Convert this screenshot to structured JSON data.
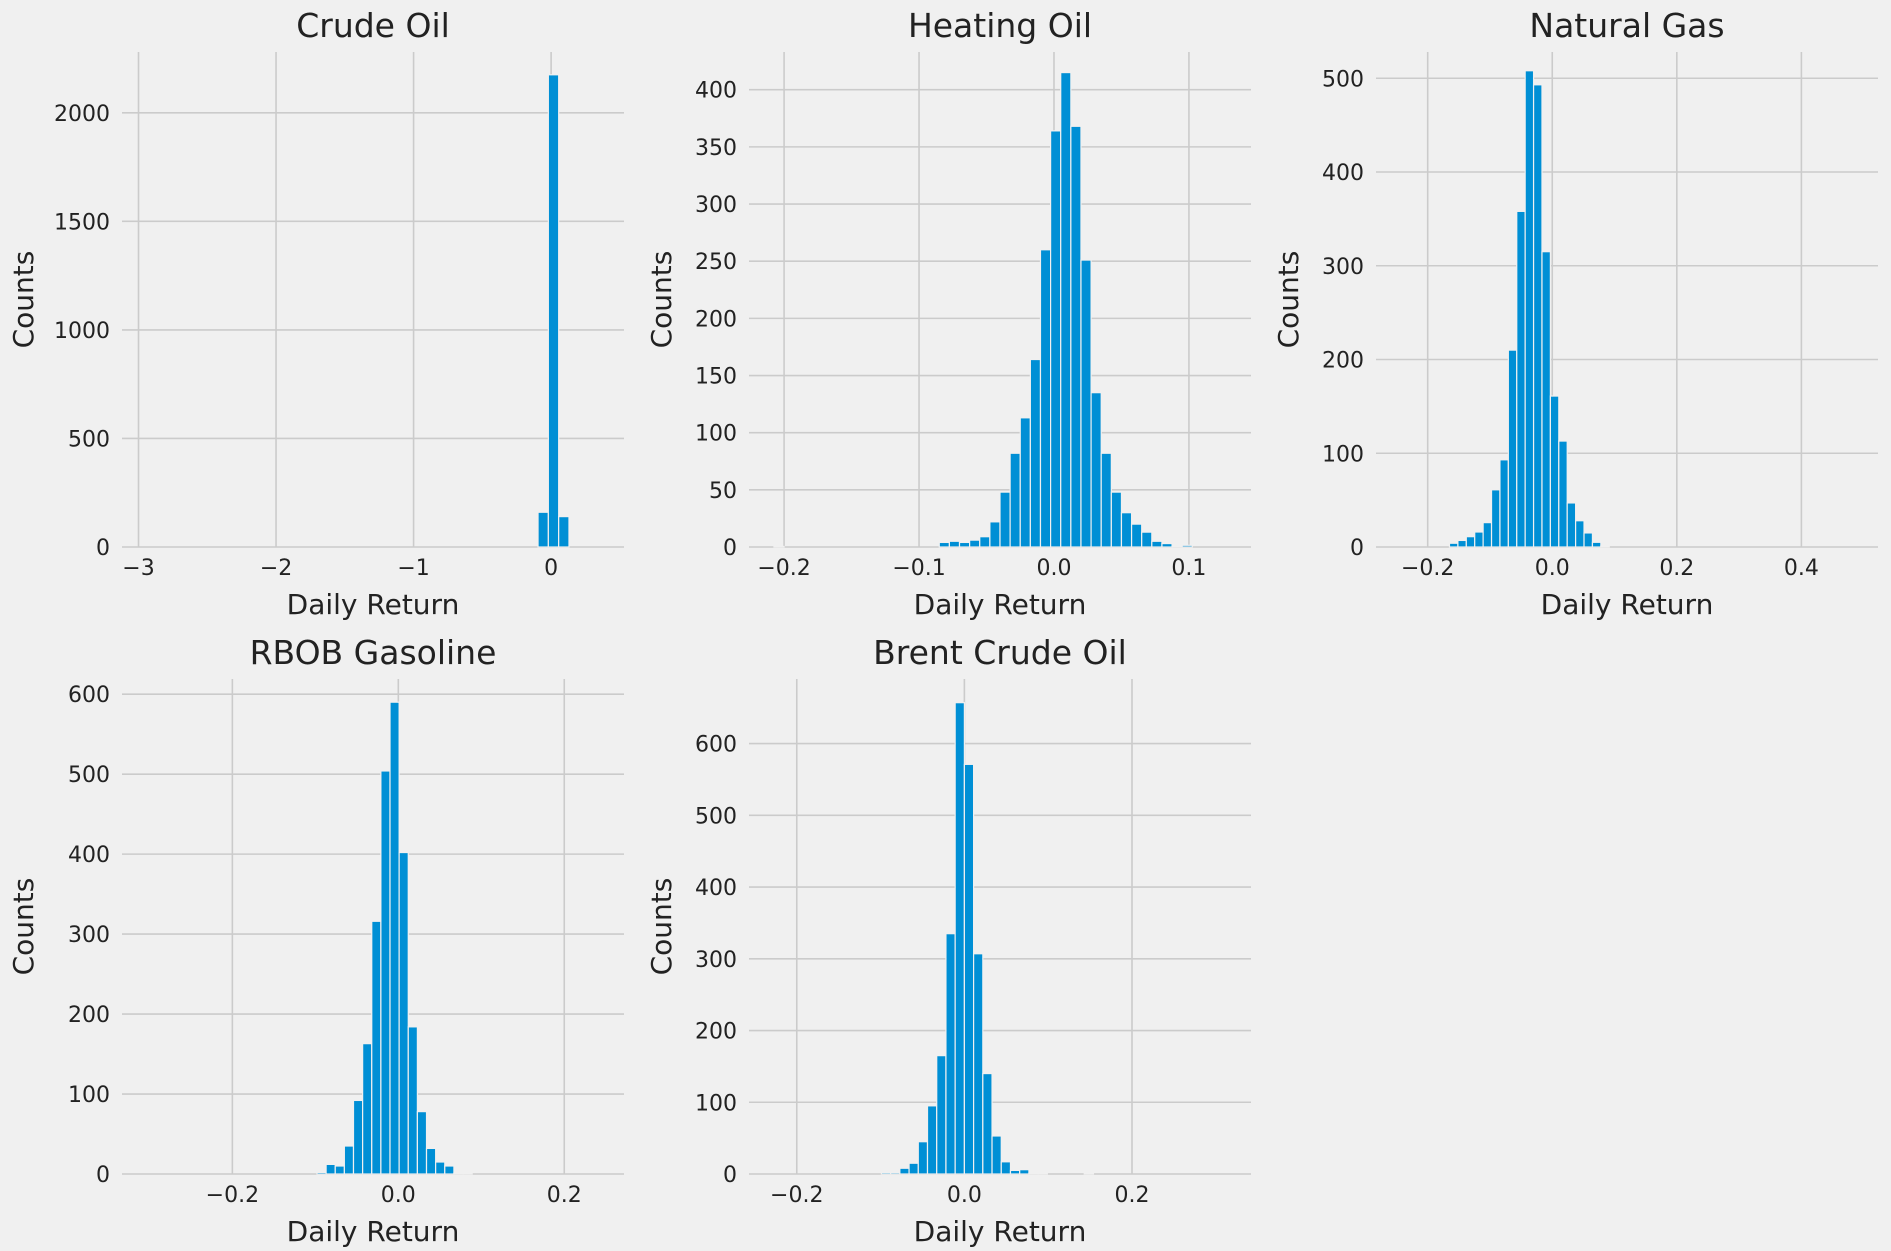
{
  "style": {
    "background": "#f0f0f0",
    "bar_color": "#008fd5",
    "grid_color": "#cbcbcb"
  },
  "chart_data": [
    {
      "type": "bar",
      "title": "Crude Oil",
      "xlabel": "Daily Return",
      "ylabel": "Counts",
      "xlim": [
        -3.12,
        0.53
      ],
      "ylim": [
        0,
        2280
      ],
      "xticks": [
        -3,
        -2,
        -1,
        0
      ],
      "xtick_labels": [
        "−3",
        "−2",
        "−1",
        "0"
      ],
      "yticks": [
        0,
        500,
        1000,
        1500,
        2000
      ],
      "ytick_labels": [
        "0",
        "500",
        "1000",
        "1500",
        "2000"
      ],
      "bins": [
        {
          "x0": -0.095,
          "x1": -0.02,
          "count": 160
        },
        {
          "x0": -0.02,
          "x1": 0.055,
          "count": 2175
        },
        {
          "x0": 0.055,
          "x1": 0.13,
          "count": 140
        }
      ]
    },
    {
      "type": "bar",
      "title": "Heating Oil",
      "xlabel": "Daily Return",
      "ylabel": "Counts",
      "xlim": [
        -0.226,
        0.146
      ],
      "ylim": [
        0,
        433
      ],
      "xticks": [
        -0.2,
        -0.1,
        0.0,
        0.1
      ],
      "xtick_labels": [
        "−0.2",
        "−0.1",
        "0.0",
        "0.1"
      ],
      "yticks": [
        0,
        50,
        100,
        150,
        200,
        250,
        300,
        350,
        400
      ],
      "ytick_labels": [
        "0",
        "50",
        "100",
        "150",
        "200",
        "250",
        "300",
        "350",
        "400"
      ],
      "bins": [
        {
          "x0": -0.2075,
          "x1": -0.2,
          "count": 0.5
        },
        {
          "x0": -0.085,
          "x1": -0.0775,
          "count": 4
        },
        {
          "x0": -0.0775,
          "x1": -0.07,
          "count": 5
        },
        {
          "x0": -0.07,
          "x1": -0.0625,
          "count": 4
        },
        {
          "x0": -0.0625,
          "x1": -0.055,
          "count": 6
        },
        {
          "x0": -0.055,
          "x1": -0.0475,
          "count": 9
        },
        {
          "x0": -0.0475,
          "x1": -0.04,
          "count": 22
        },
        {
          "x0": -0.04,
          "x1": -0.0325,
          "count": 48
        },
        {
          "x0": -0.0325,
          "x1": -0.025,
          "count": 82
        },
        {
          "x0": -0.025,
          "x1": -0.0175,
          "count": 113
        },
        {
          "x0": -0.0175,
          "x1": -0.01,
          "count": 164
        },
        {
          "x0": -0.01,
          "x1": -0.0025,
          "count": 260
        },
        {
          "x0": -0.0025,
          "x1": 0.005,
          "count": 364
        },
        {
          "x0": 0.005,
          "x1": 0.0125,
          "count": 415
        },
        {
          "x0": 0.0125,
          "x1": 0.02,
          "count": 368
        },
        {
          "x0": 0.02,
          "x1": 0.0275,
          "count": 251
        },
        {
          "x0": 0.0275,
          "x1": 0.035,
          "count": 135
        },
        {
          "x0": 0.035,
          "x1": 0.0425,
          "count": 82
        },
        {
          "x0": 0.0425,
          "x1": 0.05,
          "count": 48
        },
        {
          "x0": 0.05,
          "x1": 0.0575,
          "count": 30
        },
        {
          "x0": 0.0575,
          "x1": 0.065,
          "count": 20
        },
        {
          "x0": 0.065,
          "x1": 0.0725,
          "count": 13
        },
        {
          "x0": 0.0725,
          "x1": 0.08,
          "count": 5
        },
        {
          "x0": 0.08,
          "x1": 0.0875,
          "count": 3
        },
        {
          "x0": 0.0875,
          "x1": 0.095,
          "count": 0.5
        },
        {
          "x0": 0.095,
          "x1": 0.1025,
          "count": 1.5
        }
      ]
    },
    {
      "type": "bar",
      "title": "Natural Gas",
      "xlabel": "Daily Return",
      "ylabel": "Counts",
      "xlim": [
        -0.283,
        0.523
      ],
      "ylim": [
        0,
        528
      ],
      "xticks": [
        -0.2,
        0.0,
        0.2,
        0.4
      ],
      "xtick_labels": [
        "−0.2",
        "0.0",
        "0.2",
        "0.4"
      ],
      "yticks": [
        0,
        100,
        200,
        300,
        400,
        500
      ],
      "ytick_labels": [
        "0",
        "100",
        "200",
        "300",
        "400",
        "500"
      ],
      "bins": [
        {
          "x0": -0.165,
          "x1": -0.1515,
          "count": 4
        },
        {
          "x0": -0.1515,
          "x1": -0.138,
          "count": 7
        },
        {
          "x0": -0.138,
          "x1": -0.1245,
          "count": 11
        },
        {
          "x0": -0.1245,
          "x1": -0.111,
          "count": 16
        },
        {
          "x0": -0.111,
          "x1": -0.0975,
          "count": 26
        },
        {
          "x0": -0.0975,
          "x1": -0.084,
          "count": 61
        },
        {
          "x0": -0.084,
          "x1": -0.0705,
          "count": 93
        },
        {
          "x0": -0.0705,
          "x1": -0.057,
          "count": 210
        },
        {
          "x0": -0.057,
          "x1": -0.0435,
          "count": 358
        },
        {
          "x0": -0.0435,
          "x1": -0.03,
          "count": 508
        },
        {
          "x0": -0.03,
          "x1": -0.0165,
          "count": 493
        },
        {
          "x0": -0.0165,
          "x1": -0.003,
          "count": 315
        },
        {
          "x0": -0.003,
          "x1": 0.0105,
          "count": 161
        },
        {
          "x0": 0.0105,
          "x1": 0.024,
          "count": 113
        },
        {
          "x0": 0.024,
          "x1": 0.0375,
          "count": 47
        },
        {
          "x0": 0.0375,
          "x1": 0.051,
          "count": 28
        },
        {
          "x0": 0.051,
          "x1": 0.0645,
          "count": 15
        },
        {
          "x0": 0.0645,
          "x1": 0.078,
          "count": 5
        },
        {
          "x0": 0.078,
          "x1": 0.0915,
          "count": 1
        }
      ]
    },
    {
      "type": "bar",
      "title": "RBOB Gasoline",
      "xlabel": "Daily Return",
      "ylabel": "Counts",
      "xlim": [
        -0.333,
        0.272
      ],
      "ylim": [
        0,
        619
      ],
      "xticks": [
        -0.2,
        0.0,
        0.2
      ],
      "xtick_labels": [
        "−0.2",
        "0.0",
        "0.2"
      ],
      "yticks": [
        0,
        100,
        200,
        300,
        400,
        500,
        600
      ],
      "ytick_labels": [
        "0",
        "100",
        "200",
        "300",
        "400",
        "500",
        "600"
      ],
      "bins": [
        {
          "x0": -0.098,
          "x1": -0.087,
          "count": 2
        },
        {
          "x0": -0.087,
          "x1": -0.076,
          "count": 12
        },
        {
          "x0": -0.076,
          "x1": -0.065,
          "count": 10
        },
        {
          "x0": -0.065,
          "x1": -0.054,
          "count": 35
        },
        {
          "x0": -0.054,
          "x1": -0.043,
          "count": 92
        },
        {
          "x0": -0.043,
          "x1": -0.032,
          "count": 163
        },
        {
          "x0": -0.032,
          "x1": -0.021,
          "count": 316
        },
        {
          "x0": -0.021,
          "x1": -0.01,
          "count": 504
        },
        {
          "x0": -0.01,
          "x1": 0.001,
          "count": 590
        },
        {
          "x0": 0.001,
          "x1": 0.012,
          "count": 402
        },
        {
          "x0": 0.012,
          "x1": 0.023,
          "count": 184
        },
        {
          "x0": 0.023,
          "x1": 0.034,
          "count": 78
        },
        {
          "x0": 0.034,
          "x1": 0.045,
          "count": 32
        },
        {
          "x0": 0.045,
          "x1": 0.056,
          "count": 15
        },
        {
          "x0": 0.056,
          "x1": 0.067,
          "count": 10
        },
        {
          "x0": 0.067,
          "x1": 0.078,
          "count": 1
        },
        {
          "x0": 0.078,
          "x1": 0.089,
          "count": 1
        }
      ]
    },
    {
      "type": "bar",
      "title": "Brent Crude Oil",
      "xlabel": "Daily Return",
      "ylabel": "Counts",
      "xlim": [
        -0.257,
        0.342
      ],
      "ylim": [
        0,
        690
      ],
      "xticks": [
        -0.2,
        0.0,
        0.2
      ],
      "xtick_labels": [
        "−0.2",
        "0.0",
        "0.2"
      ],
      "yticks": [
        0,
        100,
        200,
        300,
        400,
        500,
        600
      ],
      "ytick_labels": [
        "0",
        "100",
        "200",
        "300",
        "400",
        "500",
        "600"
      ],
      "bins": [
        {
          "x0": -0.099,
          "x1": -0.088,
          "count": 2
        },
        {
          "x0": -0.088,
          "x1": -0.077,
          "count": 2
        },
        {
          "x0": -0.077,
          "x1": -0.066,
          "count": 8
        },
        {
          "x0": -0.066,
          "x1": -0.055,
          "count": 15
        },
        {
          "x0": -0.055,
          "x1": -0.044,
          "count": 45
        },
        {
          "x0": -0.044,
          "x1": -0.033,
          "count": 95
        },
        {
          "x0": -0.033,
          "x1": -0.022,
          "count": 165
        },
        {
          "x0": -0.022,
          "x1": -0.011,
          "count": 335
        },
        {
          "x0": -0.011,
          "x1": 0.0,
          "count": 657
        },
        {
          "x0": 0.0,
          "x1": 0.011,
          "count": 571
        },
        {
          "x0": 0.011,
          "x1": 0.022,
          "count": 307
        },
        {
          "x0": 0.022,
          "x1": 0.033,
          "count": 140
        },
        {
          "x0": 0.033,
          "x1": 0.044,
          "count": 53
        },
        {
          "x0": 0.044,
          "x1": 0.055,
          "count": 17
        },
        {
          "x0": 0.055,
          "x1": 0.066,
          "count": 5
        },
        {
          "x0": 0.066,
          "x1": 0.077,
          "count": 6
        },
        {
          "x0": 0.077,
          "x1": 0.088,
          "count": 1
        },
        {
          "x0": 0.088,
          "x1": 0.099,
          "count": 1
        },
        {
          "x0": 0.143,
          "x1": 0.154,
          "count": 1
        }
      ]
    }
  ]
}
